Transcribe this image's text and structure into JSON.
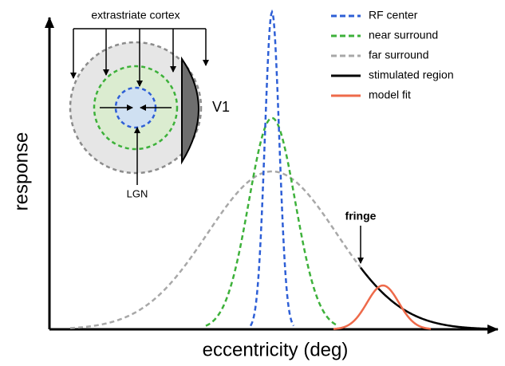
{
  "figure": {
    "y_axis_label": "response",
    "x_axis_label": "eccentricity (deg)",
    "legend": [
      "RF center",
      "near surround",
      "far surround",
      "stimulated region",
      "model fit"
    ],
    "inset": {
      "top_label": "extrastriate cortex",
      "right_label": "V1",
      "bottom_label": "LGN"
    },
    "annotation": "fringe"
  }
}
